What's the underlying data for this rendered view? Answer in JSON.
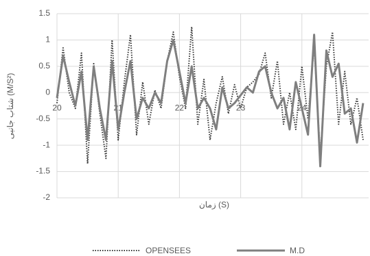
{
  "chart_data": {
    "type": "line",
    "x_label": "زمان (S)",
    "y_label": "شتاب جانبی (M/S²)",
    "x": [
      20.0,
      20.1,
      20.2,
      20.3,
      20.4,
      20.5,
      20.6,
      20.7,
      20.8,
      20.9,
      21.0,
      21.1,
      21.2,
      21.3,
      21.4,
      21.5,
      21.6,
      21.7,
      21.8,
      21.9,
      22.0,
      22.1,
      22.2,
      22.3,
      22.4,
      22.5,
      22.6,
      22.7,
      22.8,
      22.9,
      23.0,
      23.1,
      23.2,
      23.3,
      23.4,
      23.5,
      23.6,
      23.7,
      23.8,
      23.9,
      24.0,
      24.1,
      24.2,
      24.3,
      24.4,
      24.5,
      24.6,
      24.7,
      24.8,
      24.9,
      25.0
    ],
    "series": [
      {
        "name": "OPENSEES",
        "color": "#333333",
        "style": "dotted",
        "values": [
          -0.2,
          0.85,
          0.0,
          -0.3,
          0.75,
          -1.35,
          0.55,
          -0.4,
          -1.25,
          1.0,
          -0.9,
          0.2,
          1.1,
          -0.8,
          0.2,
          -0.6,
          0.05,
          -0.3,
          0.6,
          1.15,
          0.3,
          -0.3,
          1.25,
          -0.6,
          0.25,
          -0.9,
          -0.2,
          0.3,
          -0.4,
          0.15,
          -0.3,
          0.1,
          0.2,
          0.35,
          0.75,
          -0.1,
          0.6,
          -0.6,
          0.0,
          -0.7,
          0.5,
          -0.5,
          0.9,
          -1.2,
          0.5,
          1.15,
          -0.6,
          0.4,
          -0.6,
          -0.1,
          -0.9
        ]
      },
      {
        "name": "M.D",
        "color": "#7f7f7f",
        "style": "solid",
        "values": [
          -0.1,
          0.7,
          0.2,
          -0.25,
          0.4,
          -0.9,
          0.5,
          -0.3,
          -0.9,
          0.6,
          -0.7,
          0.0,
          0.6,
          -0.5,
          -0.1,
          -0.3,
          0.0,
          -0.2,
          0.6,
          1.0,
          0.4,
          -0.2,
          0.5,
          -0.3,
          -0.1,
          -0.3,
          -0.7,
          0.1,
          -0.3,
          -0.2,
          -0.05,
          0.1,
          0.0,
          0.4,
          0.5,
          0.0,
          -0.3,
          -0.1,
          -0.7,
          0.2,
          -0.3,
          -0.8,
          1.1,
          -1.4,
          0.8,
          0.3,
          0.55,
          -0.4,
          -0.3,
          -0.95,
          -0.2
        ]
      }
    ],
    "xlim": [
      20,
      25.09
    ],
    "xticks": [
      20,
      21,
      22,
      23,
      24
    ],
    "ylim": [
      -2,
      1.5
    ],
    "yticks": [
      1.5,
      1,
      0.5,
      0,
      -0.5,
      -1,
      -1.5,
      -2
    ],
    "grid": true,
    "legend": "bottom"
  }
}
